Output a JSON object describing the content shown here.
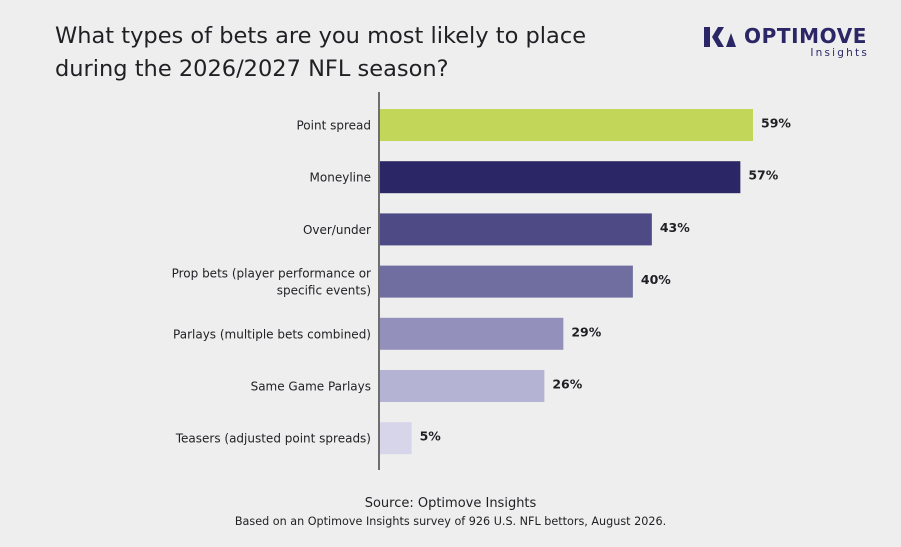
{
  "title": {
    "line1": "What types of bets are you most likely to place",
    "line2": "during the 2026/2027 NFL season?"
  },
  "logo": {
    "brand": "OPTIMOVE",
    "sub": "Insights",
    "color": "#2b2766"
  },
  "chart_data": {
    "type": "bar",
    "orientation": "horizontal",
    "categories": [
      [
        "Point spread"
      ],
      [
        "Moneyline"
      ],
      [
        "Over/under"
      ],
      [
        "Prop bets (player performance or",
        "specific events)"
      ],
      [
        "Parlays (multiple bets combined)"
      ],
      [
        "Same Game Parlays"
      ],
      [
        "Teasers (adjusted point spreads)"
      ]
    ],
    "values": [
      59,
      57,
      43,
      40,
      29,
      26,
      5
    ],
    "value_labels": [
      "59%",
      "57%",
      "43%",
      "40%",
      "29%",
      "26%",
      "5%"
    ],
    "colors": [
      "#c2d65a",
      "#2b2766",
      "#4e4a85",
      "#706da0",
      "#9391bb",
      "#b5b3d4",
      "#d6d5ea"
    ],
    "xlim": [
      0,
      59
    ],
    "grid": false,
    "legend": "none"
  },
  "footer": {
    "source": "Source: Optimove Insights",
    "note": "Based on an Optimove Insights survey of 926 U.S. NFL bettors, August 2026."
  }
}
